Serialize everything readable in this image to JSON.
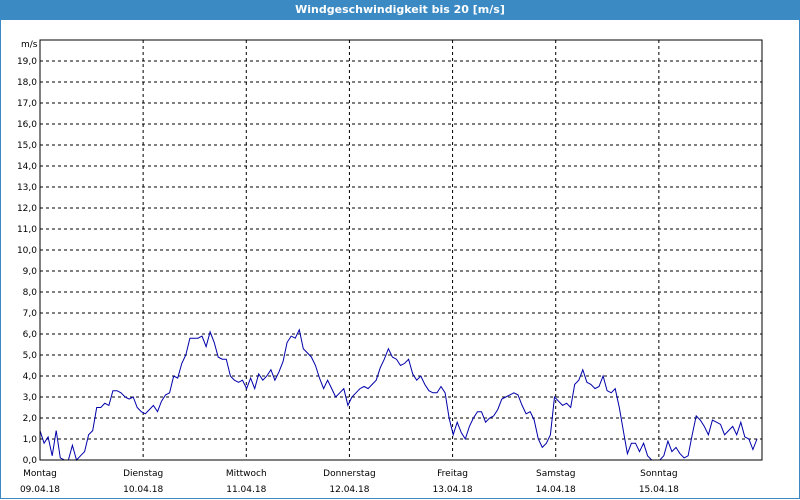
{
  "window": {
    "title": "Windgeschwindigkeit bis 20 [m/s]"
  },
  "colors": {
    "titlebar": "#3b8ac4",
    "line": "#0000aa",
    "grid": "#000000"
  },
  "chart_data": {
    "type": "line",
    "ylabel": "m/s",
    "ylim": [
      0,
      20
    ],
    "yticks": [
      "0,0",
      "1,0",
      "2,0",
      "3,0",
      "4,0",
      "5,0",
      "6,0",
      "7,0",
      "8,0",
      "9,0",
      "10,0",
      "11,0",
      "12,0",
      "13,0",
      "14,0",
      "15,0",
      "16,0",
      "17,0",
      "18,0",
      "19,0"
    ],
    "xlim": [
      0,
      7
    ],
    "grid": true,
    "x_ticks": [
      {
        "day": "Montag",
        "date": "09.04.18"
      },
      {
        "day": "Dienstag",
        "date": "10.04.18"
      },
      {
        "day": "Mittwoch",
        "date": "11.04.18"
      },
      {
        "day": "Donnerstag",
        "date": "12.04.18"
      },
      {
        "day": "Freitag",
        "date": "13.04.18"
      },
      {
        "day": "Samstag",
        "date": "14.04.18"
      },
      {
        "day": "Sonntag",
        "date": "15.04.18"
      }
    ],
    "series": [
      {
        "values": [
          1.4,
          0.8,
          1.1,
          0.2,
          1.4,
          0.1,
          0.0,
          0.0,
          0.7,
          0.0,
          0.2,
          0.4,
          1.2,
          1.4,
          2.5,
          2.5,
          2.7,
          2.6,
          3.3,
          3.3,
          3.2,
          3.0,
          2.9,
          3.0,
          2.5,
          2.3,
          2.2,
          2.4,
          2.6,
          2.3,
          2.8,
          3.1,
          3.2,
          4.0,
          3.9,
          4.6,
          5.0,
          5.8,
          5.8,
          5.8,
          5.9,
          5.4,
          6.1,
          5.6,
          4.9,
          4.8,
          4.8,
          4.0,
          3.8,
          3.7,
          3.8,
          3.4,
          3.9,
          3.4,
          4.1,
          3.8,
          4.0,
          4.3,
          3.8,
          4.2,
          4.7,
          5.6,
          5.9,
          5.8,
          6.2,
          5.3,
          5.1,
          4.9,
          4.5,
          3.9,
          3.4,
          3.8,
          3.4,
          3.0,
          3.2,
          3.4,
          2.6,
          3.0,
          3.2,
          3.4,
          3.5,
          3.4,
          3.6,
          3.8,
          4.4,
          4.8,
          5.3,
          4.9,
          4.8,
          4.5,
          4.6,
          4.8,
          4.1,
          3.8,
          4.0,
          3.6,
          3.3,
          3.2,
          3.2,
          3.5,
          3.2,
          2.0,
          1.2,
          1.8,
          1.3,
          1.0,
          1.6,
          2.0,
          2.3,
          2.3,
          1.8,
          2.0,
          2.1,
          2.4,
          2.9,
          3.0,
          3.1,
          3.2,
          3.1,
          2.6,
          2.2,
          2.3,
          1.9,
          1.0,
          0.6,
          0.8,
          1.2,
          3.0,
          2.8,
          2.6,
          2.7,
          2.5,
          3.6,
          3.8,
          4.3,
          3.7,
          3.6,
          3.4,
          3.5,
          4.0,
          3.3,
          3.2,
          3.4,
          2.5,
          1.4,
          0.3,
          0.8,
          0.8,
          0.4,
          0.8,
          0.2,
          0.0,
          0.0,
          0.0,
          0.2,
          0.9,
          0.4,
          0.6,
          0.3,
          0.1,
          0.2,
          1.2,
          2.1,
          1.9,
          1.6,
          1.2,
          1.9,
          1.8,
          1.7,
          1.2,
          1.4,
          1.6,
          1.2,
          1.8,
          1.1,
          1.0,
          0.5,
          1.0
        ]
      }
    ]
  }
}
